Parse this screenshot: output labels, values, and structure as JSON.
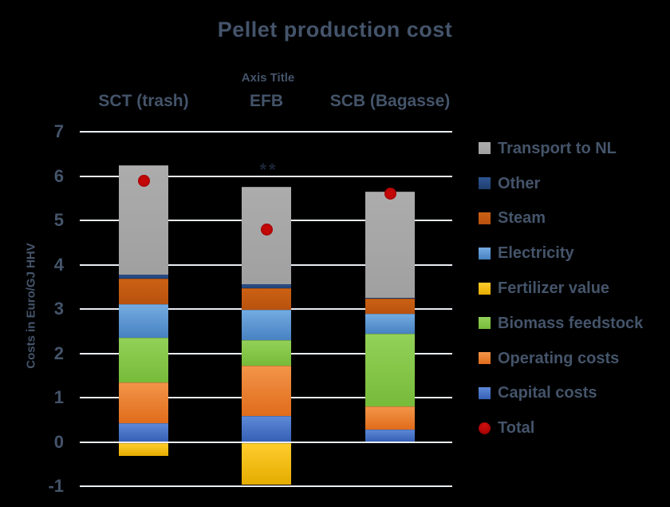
{
  "title": "Pellet production cost",
  "axis_title_placeholder": "Axis Title",
  "annotation": "**",
  "colors": {
    "background": "#000000",
    "text": "#44546A",
    "gridline": "#E9EDF3",
    "total_dot": "#C40808"
  },
  "y_axis": {
    "title": "Costs in Euro/GJ HHV",
    "ticks": [
      7,
      6,
      5,
      4,
      3,
      2,
      1,
      0,
      -1
    ]
  },
  "chart_data": {
    "type": "bar",
    "stacked": true,
    "title": "Pellet production cost",
    "xlabel": "",
    "ylabel": "Costs in Euro/GJ HHV",
    "ylim": [
      -1,
      7
    ],
    "grid": true,
    "legend_position": "right",
    "categories": [
      "SCT (trash)",
      "EFB",
      "SCB (Bagasse)"
    ],
    "series": [
      {
        "name": "Capital costs",
        "color": "#4472C4",
        "gradient": [
          "#5E8AD9",
          "#3560B4"
        ],
        "values": [
          0.42,
          0.59,
          0.28
        ]
      },
      {
        "name": "Operating costs",
        "color": "#ED7D31",
        "gradient": [
          "#F39549",
          "#E06C1B"
        ],
        "values": [
          0.93,
          1.13,
          0.52
        ]
      },
      {
        "name": "Biomass feedstock",
        "color": "#84C64A",
        "gradient": [
          "#93D158",
          "#77BB3A"
        ],
        "values": [
          1.01,
          0.58,
          1.64
        ]
      },
      {
        "name": "Fertilizer value",
        "color": "#FFC000",
        "gradient": [
          "#FFCD2E",
          "#E5AC00"
        ],
        "values": [
          -0.3,
          -0.95,
          0
        ]
      },
      {
        "name": "Electricity",
        "color": "#5B9BD5",
        "gradient": [
          "#74ACE2",
          "#4781C1"
        ],
        "values": [
          0.74,
          0.69,
          0.45
        ]
      },
      {
        "name": "Steam",
        "color": "#C55A11",
        "gradient": [
          "#CC6114",
          "#B8520E"
        ],
        "values": [
          0.59,
          0.47,
          0.34
        ]
      },
      {
        "name": "Other",
        "color": "#1F4E79",
        "gradient": [
          "#2F5694",
          "#1F3E6E"
        ],
        "values": [
          0.09,
          0.09,
          0.03
        ]
      },
      {
        "name": "Transport to NL",
        "color": "#A6A6A6",
        "gradient": [
          "#ACACAC",
          "#A0A0A0"
        ],
        "values": [
          2.47,
          2.21,
          2.38
        ]
      }
    ],
    "totals": {
      "name": "Total",
      "color": "#C40808",
      "values": [
        5.9,
        4.8,
        5.6
      ]
    }
  },
  "legend": {
    "items": [
      {
        "label": "Transport to NL",
        "shape": "square",
        "gradient": [
          "#ACACAC",
          "#A0A0A0"
        ]
      },
      {
        "label": "Other",
        "shape": "square",
        "gradient": [
          "#2F5694",
          "#1F3E6E"
        ]
      },
      {
        "label": "Steam",
        "shape": "square",
        "gradient": [
          "#CC6114",
          "#B8520E"
        ]
      },
      {
        "label": "Electricity",
        "shape": "square",
        "gradient": [
          "#74ACE2",
          "#4781C1"
        ]
      },
      {
        "label": "Fertilizer value",
        "shape": "square",
        "gradient": [
          "#FFCD2E",
          "#E5AC00"
        ]
      },
      {
        "label": "Biomass feedstock",
        "shape": "square",
        "gradient": [
          "#93D158",
          "#77BB3A"
        ]
      },
      {
        "label": "Operating costs",
        "shape": "square",
        "gradient": [
          "#F39549",
          "#E06C1B"
        ]
      },
      {
        "label": "Capital costs",
        "shape": "square",
        "gradient": [
          "#5E8AD9",
          "#3560B4"
        ]
      },
      {
        "label": "Total",
        "shape": "circle",
        "gradient": [
          "#D60F0F",
          "#AE0404"
        ]
      }
    ]
  }
}
